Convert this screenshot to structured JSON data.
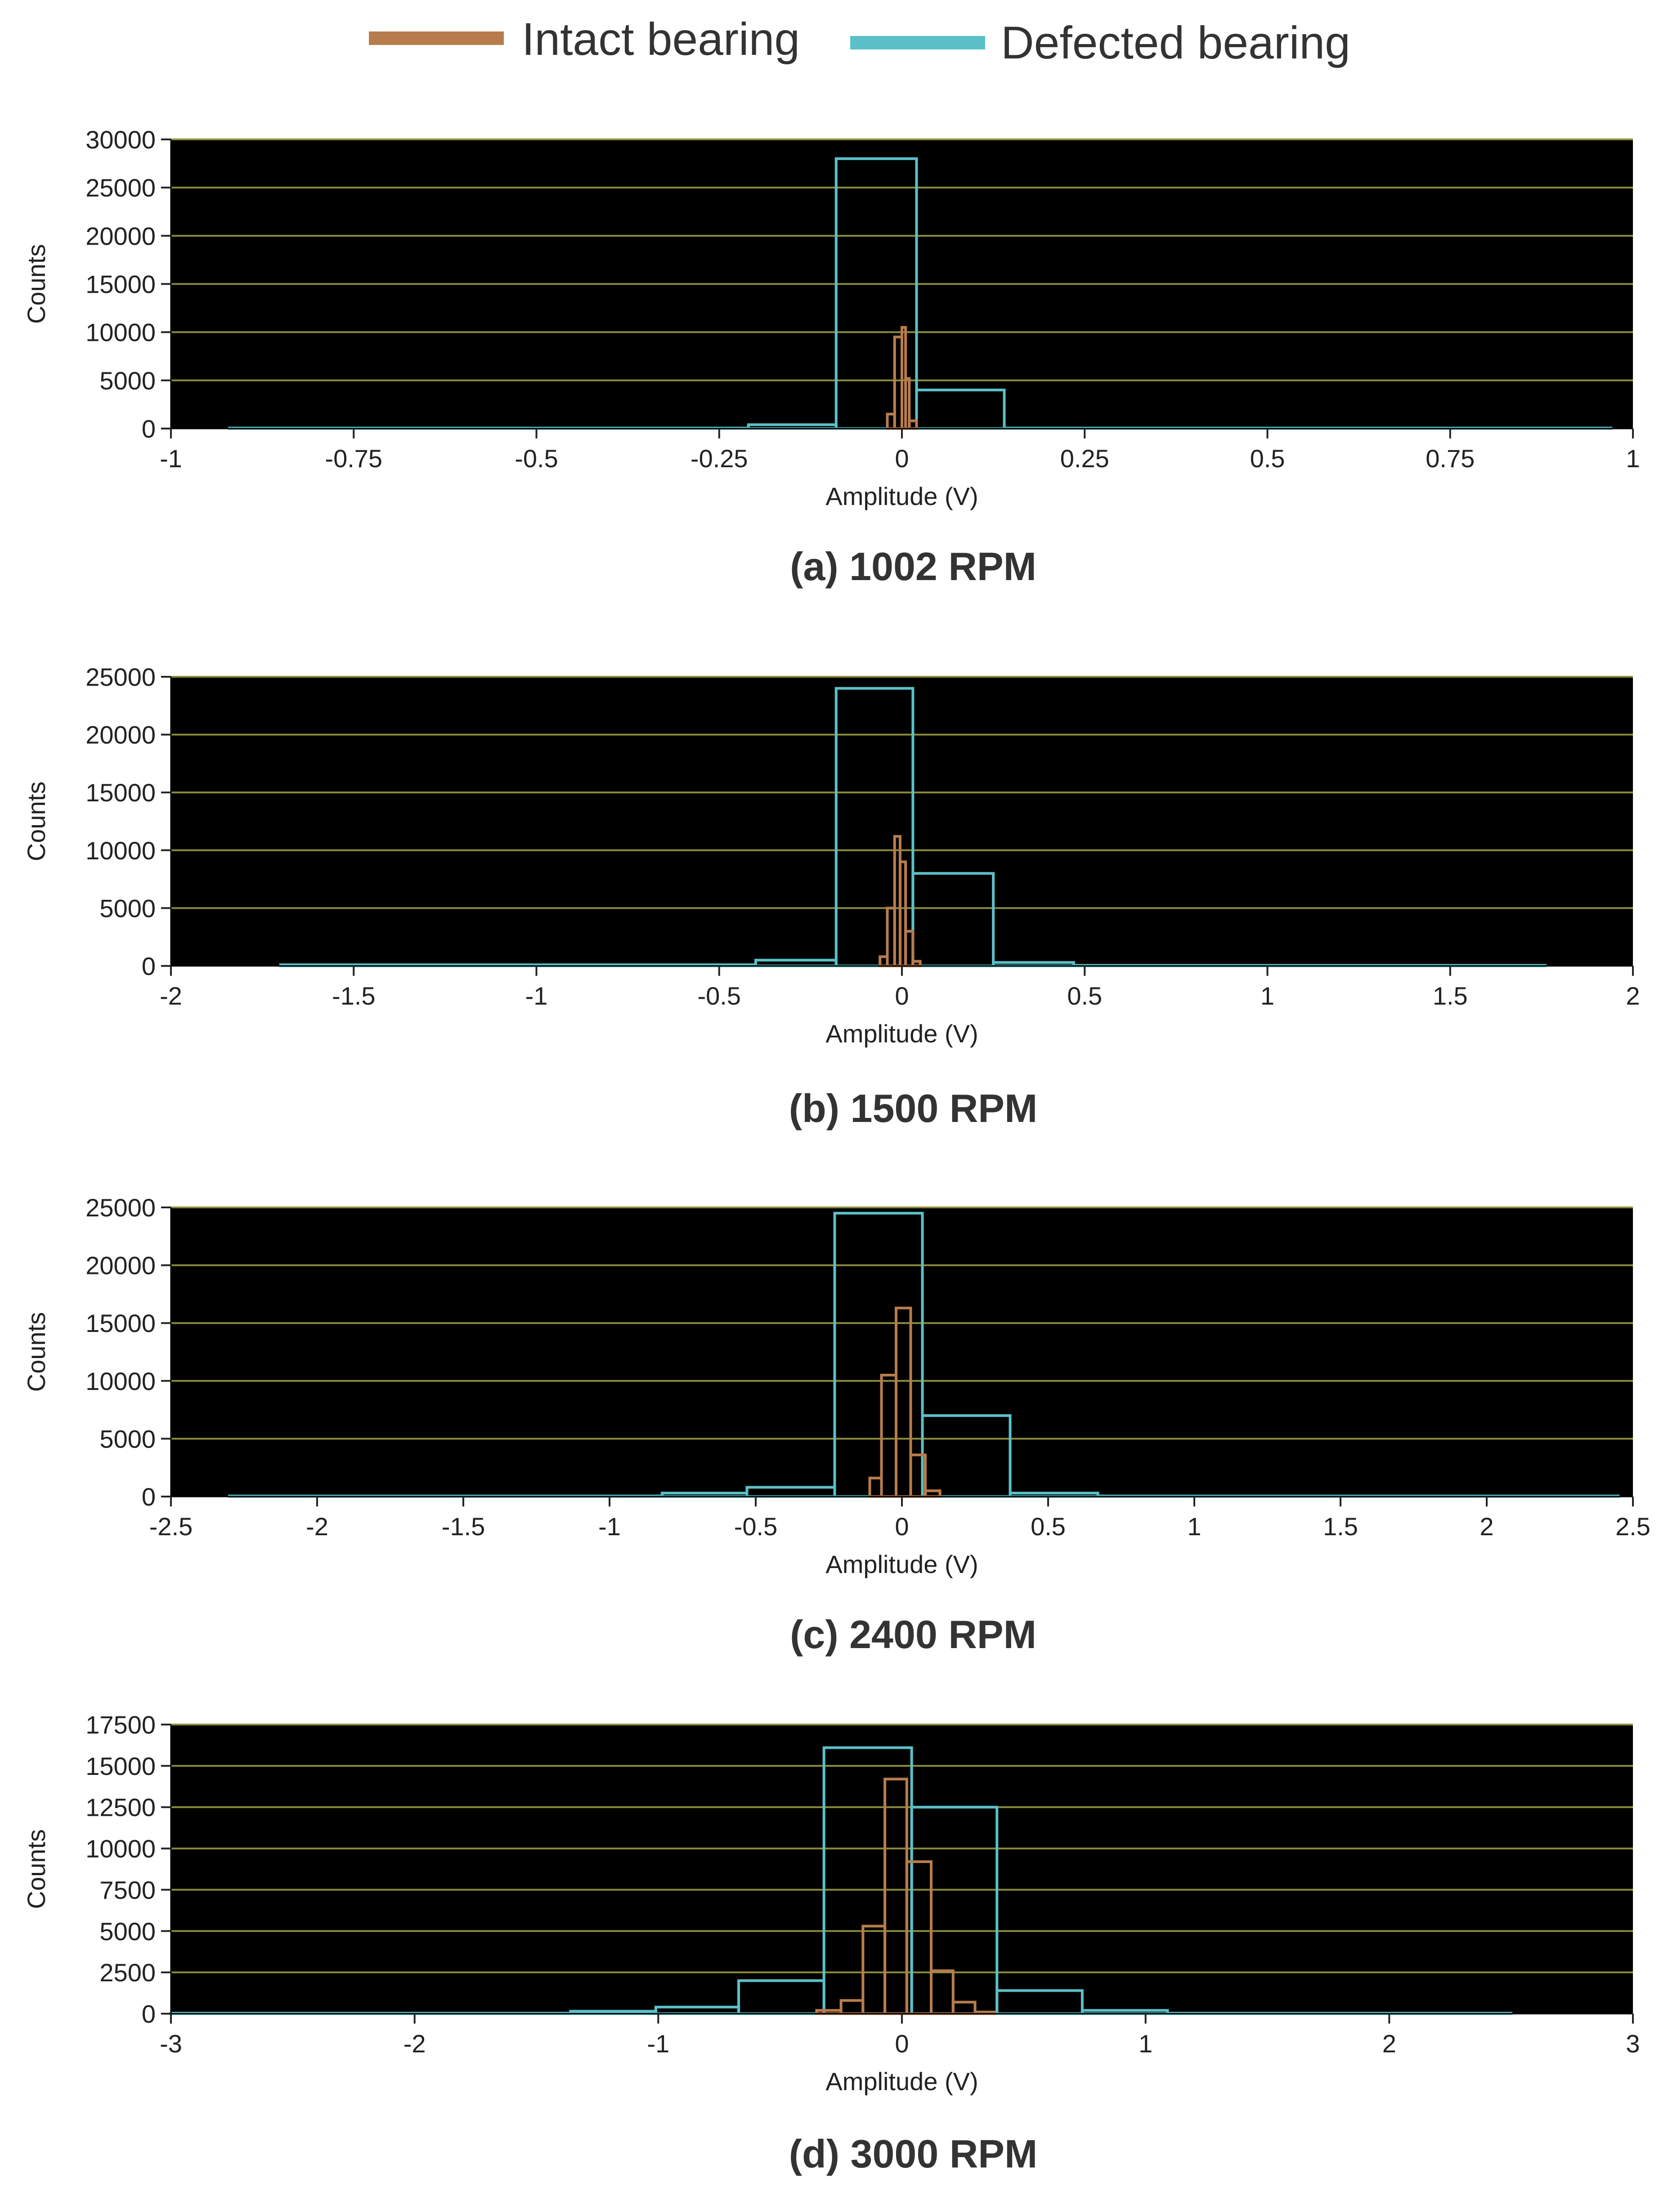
{
  "legend": [
    {
      "label": "Intact bearing",
      "color": "#b87c4c"
    },
    {
      "label": "Defected bearing",
      "color": "#5bc0c8"
    }
  ],
  "colors": {
    "plot_background": "#000000",
    "grid": "#8c8c3c",
    "intact": "#b87c4c",
    "defected": "#5bc0c8"
  },
  "chart_data": [
    {
      "type": "histogram",
      "caption": "(a) 1002 RPM",
      "xlabel": "Amplitude (V)",
      "ylabel": "Counts",
      "xlim": [
        -1,
        1
      ],
      "ylim": [
        0,
        30000
      ],
      "xticks": [
        -1,
        -0.75,
        -0.5,
        -0.25,
        0,
        0.25,
        0.5,
        0.75,
        1
      ],
      "yticks": [
        0,
        5000,
        10000,
        15000,
        20000,
        25000,
        30000
      ],
      "grid": "horizontal",
      "series": [
        {
          "name": "Defected bearing",
          "bins": [
            [
              -0.92,
              -0.21,
              50
            ],
            [
              -0.21,
              -0.09,
              400
            ],
            [
              -0.09,
              0.02,
              28000
            ],
            [
              0.02,
              0.14,
              4000
            ],
            [
              0.14,
              0.97,
              50
            ]
          ]
        },
        {
          "name": "Intact bearing",
          "bins": [
            [
              -0.02,
              -0.01,
              1500
            ],
            [
              -0.01,
              0.0,
              9500
            ],
            [
              0.0,
              0.005,
              10500
            ],
            [
              0.005,
              0.01,
              5200
            ],
            [
              0.01,
              0.02,
              800
            ]
          ]
        }
      ]
    },
    {
      "type": "histogram",
      "caption": "(b) 1500 RPM",
      "xlabel": "Amplitude (V)",
      "ylabel": "Counts",
      "xlim": [
        -2,
        2
      ],
      "ylim": [
        0,
        25000
      ],
      "xticks": [
        -2,
        -1.5,
        -1,
        -0.5,
        0,
        0.5,
        1,
        1.5,
        2
      ],
      "yticks": [
        0,
        5000,
        10000,
        15000,
        20000,
        25000
      ],
      "grid": "horizontal",
      "series": [
        {
          "name": "Defected bearing",
          "bins": [
            [
              -1.7,
              -0.4,
              100
            ],
            [
              -0.4,
              -0.18,
              500
            ],
            [
              -0.18,
              0.03,
              24000
            ],
            [
              0.03,
              0.25,
              8000
            ],
            [
              0.25,
              0.47,
              300
            ],
            [
              0.47,
              1.76,
              50
            ]
          ]
        },
        {
          "name": "Intact bearing",
          "bins": [
            [
              -0.06,
              -0.04,
              800
            ],
            [
              -0.04,
              -0.02,
              5000
            ],
            [
              -0.02,
              -0.005,
              11200
            ],
            [
              -0.005,
              0.01,
              9000
            ],
            [
              0.01,
              0.03,
              3000
            ],
            [
              0.03,
              0.05,
              400
            ]
          ]
        }
      ]
    },
    {
      "type": "histogram",
      "caption": "(c) 2400 RPM",
      "xlabel": "Amplitude (V)",
      "ylabel": "Counts",
      "xlim": [
        -2.5,
        2.5
      ],
      "ylim": [
        0,
        25000
      ],
      "xticks": [
        -2.5,
        -2,
        -1.5,
        -1,
        -0.5,
        0,
        0.5,
        1,
        1.5,
        2,
        2.5
      ],
      "yticks": [
        0,
        5000,
        10000,
        15000,
        20000,
        25000
      ],
      "grid": "horizontal",
      "series": [
        {
          "name": "Defected bearing",
          "bins": [
            [
              -2.3,
              -0.82,
              50
            ],
            [
              -0.82,
              -0.53,
              300
            ],
            [
              -0.53,
              -0.23,
              800
            ],
            [
              -0.23,
              0.07,
              24500
            ],
            [
              0.07,
              0.37,
              7000
            ],
            [
              0.37,
              0.67,
              300
            ],
            [
              0.67,
              2.45,
              50
            ]
          ]
        },
        {
          "name": "Intact bearing",
          "bins": [
            [
              -0.11,
              -0.07,
              1600
            ],
            [
              -0.07,
              -0.02,
              10500
            ],
            [
              -0.02,
              0.03,
              16300
            ],
            [
              0.03,
              0.08,
              3600
            ],
            [
              0.08,
              0.13,
              500
            ]
          ]
        }
      ]
    },
    {
      "type": "histogram",
      "caption": "(d) 3000 RPM",
      "xlabel": "Amplitude (V)",
      "ylabel": "Counts",
      "xlim": [
        -3,
        3
      ],
      "ylim": [
        0,
        17500
      ],
      "xticks": [
        -3,
        -2,
        -1,
        0,
        1,
        2,
        3
      ],
      "yticks": [
        0,
        2500,
        5000,
        7500,
        10000,
        12500,
        15000,
        17500
      ],
      "grid": "horizontal",
      "series": [
        {
          "name": "Defected bearing",
          "bins": [
            [
              -3.0,
              -1.36,
              30
            ],
            [
              -1.36,
              -1.01,
              150
            ],
            [
              -1.01,
              -0.67,
              400
            ],
            [
              -0.67,
              -0.32,
              2000
            ],
            [
              -0.32,
              0.04,
              16100
            ],
            [
              0.04,
              0.39,
              12500
            ],
            [
              0.39,
              0.74,
              1400
            ],
            [
              0.74,
              1.09,
              200
            ],
            [
              1.09,
              2.5,
              30
            ]
          ]
        },
        {
          "name": "Intact bearing",
          "bins": [
            [
              -0.35,
              -0.25,
              200
            ],
            [
              -0.25,
              -0.16,
              800
            ],
            [
              -0.16,
              -0.07,
              5300
            ],
            [
              -0.07,
              0.02,
              14200
            ],
            [
              0.02,
              0.12,
              9200
            ],
            [
              0.12,
              0.21,
              2600
            ],
            [
              0.21,
              0.3,
              700
            ],
            [
              0.3,
              0.38,
              100
            ]
          ]
        }
      ]
    }
  ]
}
